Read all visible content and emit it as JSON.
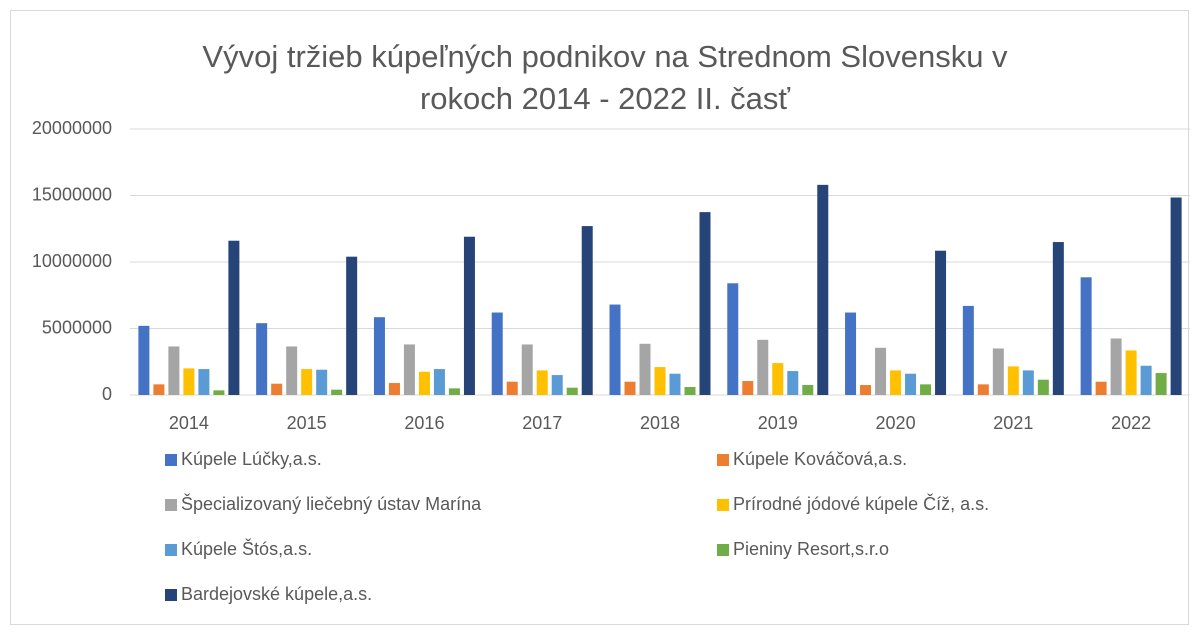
{
  "chart_data": {
    "type": "bar",
    "title": "Vývoj tržieb kúpeľných podnikov na Strednom Slovensku v rokoch 2014 - 2022 II. časť",
    "categories": [
      "2014",
      "2015",
      "2016",
      "2017",
      "2018",
      "2019",
      "2020",
      "2021",
      "2022"
    ],
    "series": [
      {
        "name": "Kúpele Lúčky,a.s.",
        "color": "#4472c4",
        "values": [
          5200000,
          5400000,
          5850000,
          6200000,
          6800000,
          8400000,
          6200000,
          6700000,
          8850000
        ]
      },
      {
        "name": "Kúpele Kováčová,a.s.",
        "color": "#ed7d31",
        "values": [
          800000,
          850000,
          900000,
          1000000,
          1000000,
          1050000,
          750000,
          800000,
          1000000
        ]
      },
      {
        "name": "Špecializovaný liečebný ústav Marína",
        "color": "#a5a5a5",
        "values": [
          3650000,
          3650000,
          3800000,
          3800000,
          3850000,
          4150000,
          3550000,
          3500000,
          4250000
        ]
      },
      {
        "name": "Prírodné jódové kúpele Číž, a.s.",
        "color": "#ffc000",
        "values": [
          2000000,
          1950000,
          1750000,
          1850000,
          2100000,
          2400000,
          1850000,
          2150000,
          3350000
        ]
      },
      {
        "name": "Kúpele Štós,a.s.",
        "color": "#5b9bd5",
        "values": [
          1950000,
          1900000,
          1950000,
          1500000,
          1600000,
          1800000,
          1600000,
          1850000,
          2200000
        ]
      },
      {
        "name": "Pieniny Resort,s.r.o",
        "color": "#70ad47",
        "values": [
          350000,
          400000,
          500000,
          550000,
          600000,
          750000,
          800000,
          1150000,
          1650000
        ]
      },
      {
        "name": "Bardejovské kúpele,a.s.",
        "color": "#264478",
        "values": [
          11600000,
          10400000,
          11900000,
          12700000,
          13750000,
          15800000,
          10850000,
          11500000,
          14850000
        ]
      }
    ],
    "ylim": [
      0,
      20000000
    ],
    "yticks": [
      0,
      5000000,
      10000000,
      15000000,
      20000000
    ],
    "grid": true
  }
}
